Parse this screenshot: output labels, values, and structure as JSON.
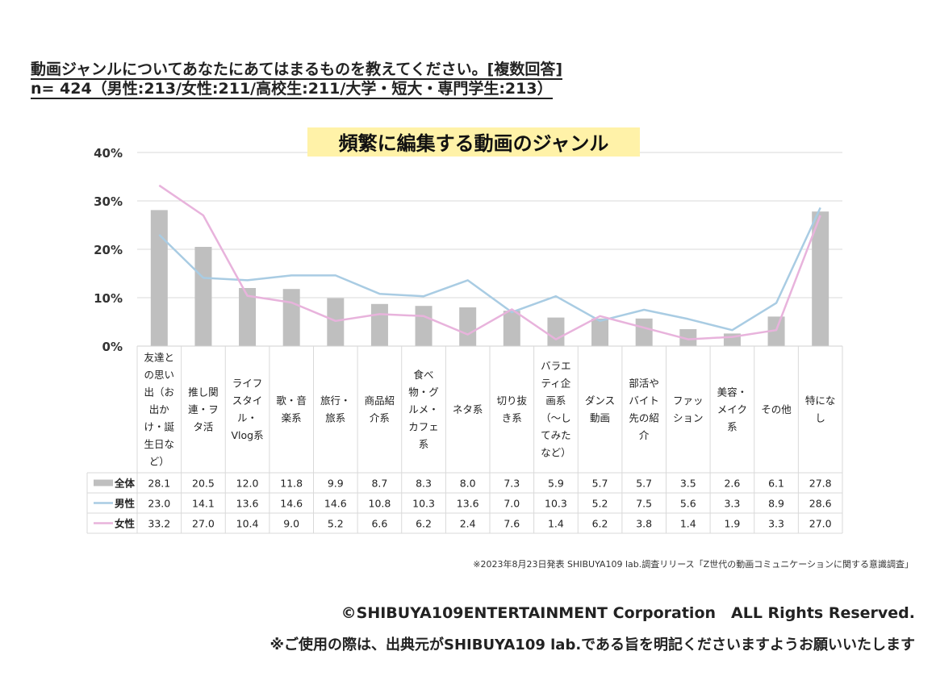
{
  "header": {
    "question": "動画ジャンルについてあなたにあてはまるものを教えてください。[複数回答]",
    "sample": "n= 424（男性:213/女性:211/高校生:211/大学・短大・専門学生:213）"
  },
  "chart_data": {
    "type": "bar",
    "title": "頻繁に編集する動画のジャンル",
    "ylim": [
      0,
      40
    ],
    "yticks": [
      "0%",
      "10%",
      "20%",
      "30%",
      "40%"
    ],
    "grid": true,
    "categories": [
      "友達との思い出（お出かけ・誕生日など）",
      "推し関連・ヲタ活",
      "ライフスタイル・Vlog系",
      "歌・音楽系",
      "旅行・旅系",
      "商品紹介系",
      "食べ物・グルメ・カフェ系",
      "ネタ系",
      "切り抜き系",
      "バラエティ企画系（〜してみたなど）",
      "ダンス動画",
      "部活やバイト先の紹介",
      "ファッション",
      "美容・メイク系",
      "その他",
      "特になし"
    ],
    "category_lines": [
      [
        "友達と",
        "の思い",
        "出（お",
        "出か",
        "け・誕",
        "生日な",
        "ど）"
      ],
      [
        "推し関",
        "連・ヲ",
        "タ活"
      ],
      [
        "ライフ",
        "スタイ",
        "ル・",
        "Vlog系"
      ],
      [
        "歌・音",
        "楽系"
      ],
      [
        "旅行・",
        "旅系"
      ],
      [
        "商品紹",
        "介系"
      ],
      [
        "食べ",
        "物・グ",
        "ルメ・",
        "カフェ",
        "系"
      ],
      [
        "ネタ系"
      ],
      [
        "切り抜",
        "き系"
      ],
      [
        "バラエ",
        "ティ企",
        "画系",
        "（〜し",
        "てみた",
        "など）"
      ],
      [
        "ダンス",
        "動画"
      ],
      [
        "部活や",
        "バイト",
        "先の紹",
        "介"
      ],
      [
        "ファッ",
        "ション"
      ],
      [
        "美容・",
        "メイク",
        "系"
      ],
      [
        "その他"
      ],
      [
        "特にな",
        "し"
      ]
    ],
    "series": [
      {
        "name": "全体",
        "render": "bar",
        "color": "#bfbfbf",
        "values": [
          28.1,
          20.5,
          12.0,
          11.8,
          9.9,
          8.7,
          8.3,
          8.0,
          7.3,
          5.9,
          5.7,
          5.7,
          3.5,
          2.6,
          6.1,
          27.8
        ]
      },
      {
        "name": "男性",
        "render": "line",
        "color": "#a9cce3",
        "values": [
          23.0,
          14.1,
          13.6,
          14.6,
          14.6,
          10.8,
          10.3,
          13.6,
          7.0,
          10.3,
          5.2,
          7.5,
          5.6,
          3.3,
          8.9,
          28.6
        ]
      },
      {
        "name": "女性",
        "render": "line",
        "color": "#e8b3dc",
        "values": [
          33.2,
          27.0,
          10.4,
          9.0,
          5.2,
          6.6,
          6.2,
          2.4,
          7.6,
          1.4,
          6.2,
          3.8,
          1.4,
          1.9,
          3.3,
          27.0
        ]
      }
    ],
    "table_values": [
      [
        "28.1",
        "20.5",
        "12.0",
        "11.8",
        "9.9",
        "8.7",
        "8.3",
        "8.0",
        "7.3",
        "5.9",
        "5.7",
        "5.7",
        "3.5",
        "2.6",
        "6.1",
        "27.8"
      ],
      [
        "23.0",
        "14.1",
        "13.6",
        "14.6",
        "14.6",
        "10.8",
        "10.3",
        "13.6",
        "7.0",
        "10.3",
        "5.2",
        "7.5",
        "5.6",
        "3.3",
        "8.9",
        "28.6"
      ],
      [
        "33.2",
        "27.0",
        "10.4",
        "9.0",
        "5.2",
        "6.6",
        "6.2",
        "2.4",
        "7.6",
        "1.4",
        "6.2",
        "3.8",
        "1.4",
        "1.9",
        "3.3",
        "27.0"
      ]
    ]
  },
  "footer": {
    "source": "※2023年8月23日発表 SHIBUYA109 lab.調査リリース「Z世代の動画コミュニケーションに関する意識調査」",
    "copyright": "©SHIBUYA109ENTERTAINMENT Corporation　ALL Rights Reserved.",
    "notice": "※ご使用の際は、出典元がSHIBUYA109 lab.である旨を明記くださいますようお願いいたします"
  },
  "colors": {
    "title_highlight": "#fff2a8",
    "bar": "#bfbfbf",
    "male_line": "#a9cce3",
    "female_line": "#e8b3dc",
    "grid": "#d9d9d9"
  }
}
